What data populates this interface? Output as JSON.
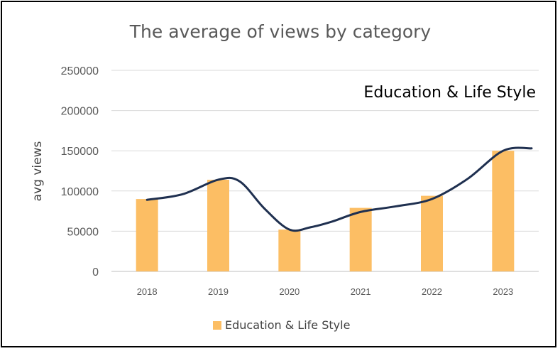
{
  "chart_data": {
    "type": "bar",
    "title": "The average of views by category",
    "annotation": "Education & Life Style",
    "xlabel": "",
    "ylabel": "avg views",
    "categories": [
      "2018",
      "2019",
      "2020",
      "2021",
      "2022",
      "2023"
    ],
    "series": [
      {
        "name": "Education & Life Style",
        "values": [
          90000,
          114000,
          52000,
          79000,
          94000,
          150000
        ],
        "color": "#FCBE64"
      }
    ],
    "trendline": {
      "type": "smoothed line",
      "color": "#1F3050",
      "x": [
        "2018",
        "2018.5",
        "2019",
        "2019.3",
        "2019.65",
        "2020",
        "2020.3",
        "2020.6",
        "2021",
        "2021.5",
        "2022",
        "2022.5",
        "2023",
        "2023.4"
      ],
      "values": [
        89000,
        96000,
        114000,
        112000,
        78000,
        52000,
        55000,
        62000,
        74000,
        81000,
        90000,
        115000,
        150000,
        153000
      ]
    },
    "ylim": [
      0,
      250000
    ],
    "yticks": [
      "0",
      "50000",
      "100000",
      "150000",
      "200000",
      "250000"
    ],
    "grid": true,
    "legend_position": "bottom"
  }
}
